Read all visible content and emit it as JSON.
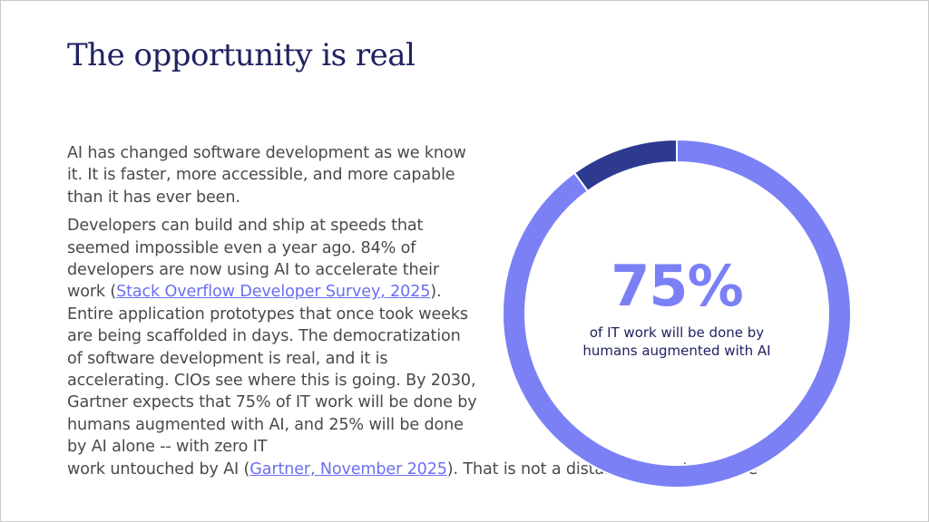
{
  "slide": {
    "title": "The opportunity is real",
    "paragraph1": "AI has changed software development as we know it. It is faster, more accessible, and more capable than it has ever been.",
    "paragraph2_a": "Developers can build and ship at speeds that seemed impossible even a year ago. 84% of developers are now using AI to accelerate their work (",
    "link1": "Stack Overflow Developer Survey, 2025",
    "paragraph2_b": "). Entire application prototypes that once took weeks are being scaffolded in days. The democratization of software development is real, and it is accelerating. CIOs see where this is going. By 2030, Gartner expects that 75% of IT work will be done by humans augmented with AI, and 25% will be done by AI alone -- with zero IT",
    "paragraph2_c": "work untouched by AI (",
    "link2": "Gartner, November 2025",
    "paragraph2_d": "). That is not a distant forecast. It is the"
  },
  "stat": {
    "value": "75%",
    "caption": "of IT work will be done by humans augmented with AI"
  },
  "chart_data": {
    "type": "pie",
    "style": "donut",
    "slices": [
      {
        "value": 90,
        "color": "#7b80f5"
      },
      {
        "value": 10,
        "color": "#2e3a8f"
      }
    ]
  }
}
